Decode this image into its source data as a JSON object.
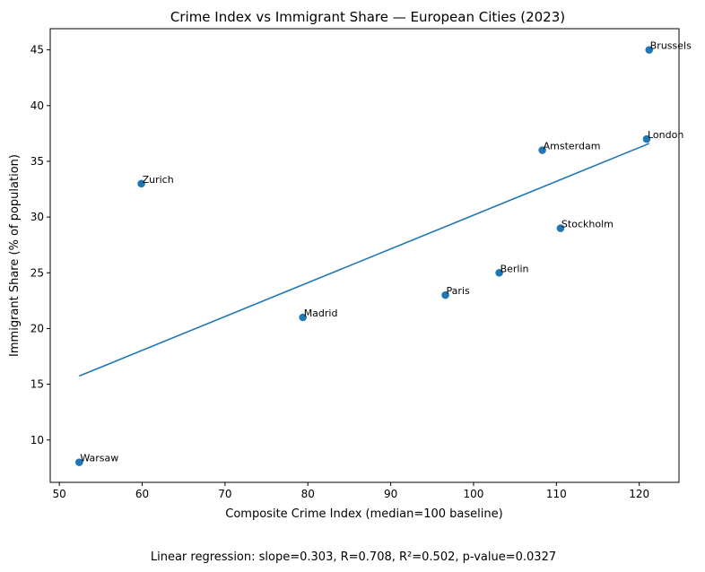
{
  "chart_data": {
    "type": "scatter",
    "title": "Crime Index vs Immigrant Share — European Cities (2023)",
    "xlabel": "Composite Crime Index (median=100 baseline)",
    "ylabel": "Immigrant Share (% of population)",
    "xlim": [
      48.9,
      124.8
    ],
    "ylim": [
      6.2,
      46.9
    ],
    "xticks": [
      50,
      60,
      70,
      80,
      90,
      100,
      110,
      120
    ],
    "yticks": [
      10,
      15,
      20,
      25,
      30,
      35,
      40,
      45
    ],
    "grid": false,
    "points": [
      {
        "label": "Brussels",
        "x": 121.2,
        "y": 45
      },
      {
        "label": "London",
        "x": 120.9,
        "y": 37
      },
      {
        "label": "Amsterdam",
        "x": 108.3,
        "y": 36
      },
      {
        "label": "Zurich",
        "x": 59.9,
        "y": 33
      },
      {
        "label": "Stockholm",
        "x": 110.5,
        "y": 29
      },
      {
        "label": "Berlin",
        "x": 103.1,
        "y": 25
      },
      {
        "label": "Paris",
        "x": 96.6,
        "y": 23
      },
      {
        "label": "Madrid",
        "x": 79.4,
        "y": 21
      },
      {
        "label": "Warsaw",
        "x": 52.4,
        "y": 8
      }
    ],
    "regression": {
      "x": [
        52.4,
        121.2
      ],
      "y": [
        15.74,
        36.6
      ]
    },
    "color": "#1f77b4"
  },
  "footnote": "Linear regression: slope=0.303, R=0.708, R²=0.502, p-value=0.0327"
}
